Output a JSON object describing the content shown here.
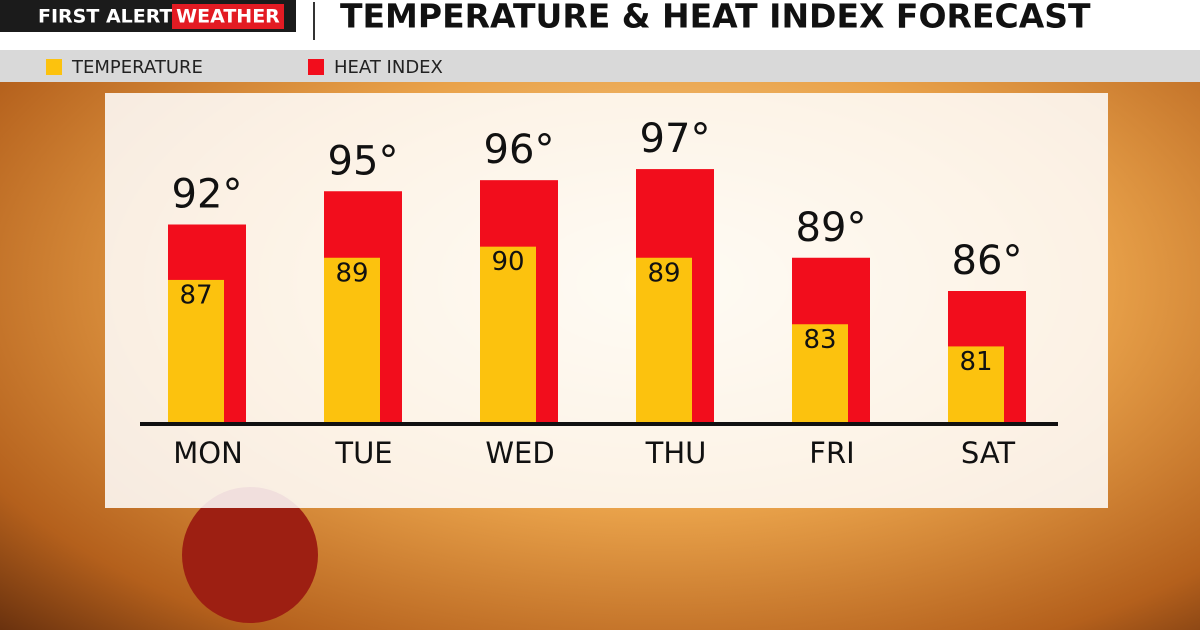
{
  "chart_data": {
    "type": "bar",
    "brand": "FIRST ALERT",
    "brand_highlight": "WEATHER",
    "title": "TEMPERATURE & HEAT INDEX FORECAST",
    "categories": [
      "MON",
      "TUE",
      "WED",
      "THU",
      "FRI",
      "SAT"
    ],
    "series": [
      {
        "name": "TEMPERATURE",
        "color": "#fcc20e",
        "values": [
          87,
          89,
          90,
          89,
          83,
          81
        ]
      },
      {
        "name": "HEAT INDEX",
        "color": "#f20d1c",
        "values": [
          92,
          95,
          96,
          97,
          89,
          86
        ],
        "value_labels": [
          "92°",
          "95°",
          "96°",
          "97°",
          "89°",
          "86°"
        ]
      }
    ],
    "ylim": [
      74,
      98
    ]
  }
}
